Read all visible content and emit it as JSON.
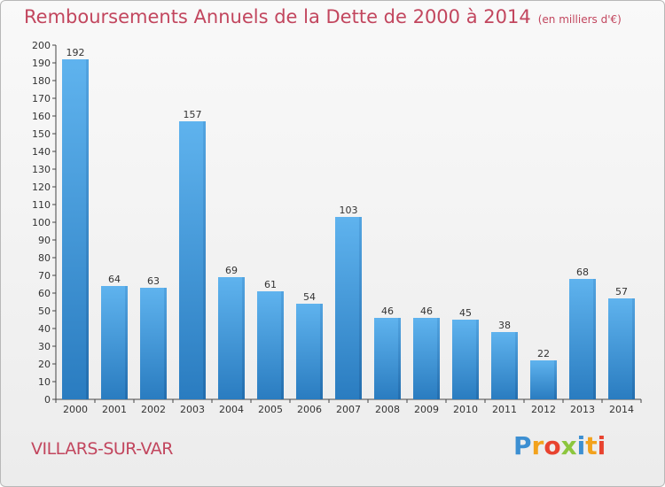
{
  "title": "Remboursements Annuels de la Dette de 2000 à 2014",
  "unit_label": "(en milliers d'€)",
  "commune": "VILLARS-SUR-VAR",
  "logo_text": "Proxiti",
  "logo_letters": [
    "P",
    "r",
    "o",
    "x",
    "i",
    "t",
    "i"
  ],
  "colors": {
    "title": "#c2465e",
    "bar_light": "#5aaeea",
    "bar_dark": "#2a7fc4"
  },
  "chart_data": {
    "type": "bar",
    "title": "Remboursements Annuels de la Dette de 2000 à 2014",
    "xlabel": "",
    "ylabel": "",
    "ylim": [
      0,
      200
    ],
    "ytick_step": 10,
    "grid": false,
    "categories": [
      "2000",
      "2001",
      "2002",
      "2003",
      "2004",
      "2005",
      "2006",
      "2007",
      "2008",
      "2009",
      "2010",
      "2011",
      "2012",
      "2013",
      "2014"
    ],
    "values": [
      192,
      64,
      63,
      157,
      69,
      61,
      54,
      103,
      46,
      46,
      45,
      38,
      22,
      68,
      57
    ]
  }
}
